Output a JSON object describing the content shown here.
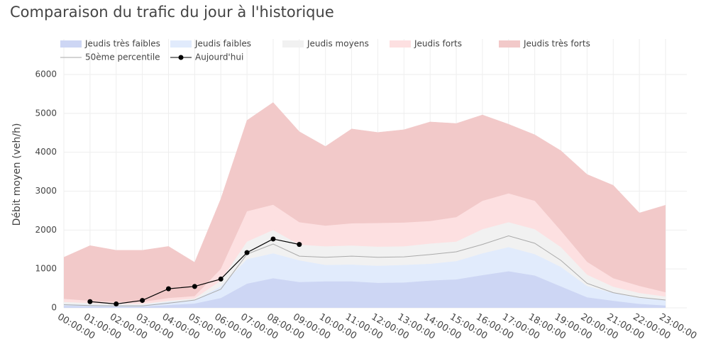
{
  "chart_data": {
    "type": "area-bands",
    "title": "Comparaison du trafic du jour à l'historique",
    "y_label": "Débit moyen (veh/h)",
    "categories": [
      "00:00:00",
      "01:00:00",
      "02:00:00",
      "03:00:00",
      "04:00:00",
      "05:00:00",
      "06:00:00",
      "07:00:00",
      "08:00:00",
      "09:00:00",
      "10:00:00",
      "11:00:00",
      "12:00:00",
      "13:00:00",
      "14:00:00",
      "15:00:00",
      "16:00:00",
      "17:00:00",
      "18:00:00",
      "19:00:00",
      "20:00:00",
      "21:00:00",
      "22:00:00",
      "23:00:00"
    ],
    "ylim": [
      0,
      6000
    ],
    "yticks": [
      0,
      1000,
      2000,
      3000,
      4000,
      5000,
      6000
    ],
    "grid": true,
    "series": [
      {
        "name": "Jeudis très faibles",
        "color": "#cdd6f4",
        "kind": "band",
        "values": [
          50,
          40,
          30,
          30,
          70,
          110,
          250,
          620,
          760,
          660,
          680,
          680,
          640,
          650,
          700,
          730,
          840,
          940,
          830,
          550,
          270,
          180,
          100,
          60
        ]
      },
      {
        "name": "Jeudis faibles",
        "color": "#e1ebfc",
        "kind": "band",
        "values": [
          100,
          80,
          70,
          70,
          150,
          200,
          550,
          1250,
          1400,
          1220,
          1100,
          1110,
          1080,
          1100,
          1130,
          1200,
          1400,
          1560,
          1380,
          1050,
          560,
          380,
          250,
          200
        ]
      },
      {
        "name": "Jeudis moyens",
        "color": "#f1f1f1",
        "kind": "band",
        "values": [
          150,
          120,
          100,
          100,
          180,
          240,
          700,
          1700,
          2000,
          1620,
          1580,
          1600,
          1570,
          1580,
          1650,
          1700,
          2020,
          2200,
          2020,
          1560,
          850,
          540,
          380,
          290
        ]
      },
      {
        "name": "Jeudis forts",
        "color": "#fde0e1",
        "kind": "band",
        "values": [
          230,
          180,
          150,
          150,
          250,
          300,
          1000,
          2480,
          2650,
          2200,
          2110,
          2170,
          2180,
          2190,
          2230,
          2330,
          2750,
          2940,
          2750,
          1980,
          1180,
          760,
          560,
          400
        ]
      },
      {
        "name": "Jeudis très forts",
        "color": "#f2c9c9",
        "kind": "band",
        "values": [
          1300,
          1600,
          1480,
          1480,
          1580,
          1170,
          2800,
          4820,
          5280,
          4530,
          4150,
          4600,
          4510,
          4580,
          4780,
          4740,
          4960,
          4720,
          4450,
          4040,
          3430,
          3150,
          2440,
          2640
        ]
      },
      {
        "name": "50ème percentile",
        "color": "#aaaaaa",
        "kind": "line",
        "values": [
          80,
          60,
          50,
          50,
          120,
          200,
          480,
          1380,
          1640,
          1330,
          1300,
          1330,
          1300,
          1310,
          1370,
          1440,
          1630,
          1850,
          1660,
          1220,
          630,
          390,
          270,
          200
        ]
      },
      {
        "name": "Aujourd'hui",
        "color": "#000000",
        "kind": "markers",
        "values": [
          null,
          160,
          100,
          190,
          490,
          550,
          740,
          1420,
          1770,
          1630,
          null,
          null,
          null,
          null,
          null,
          null,
          null,
          null,
          null,
          null,
          null,
          null,
          null,
          null
        ]
      }
    ]
  }
}
